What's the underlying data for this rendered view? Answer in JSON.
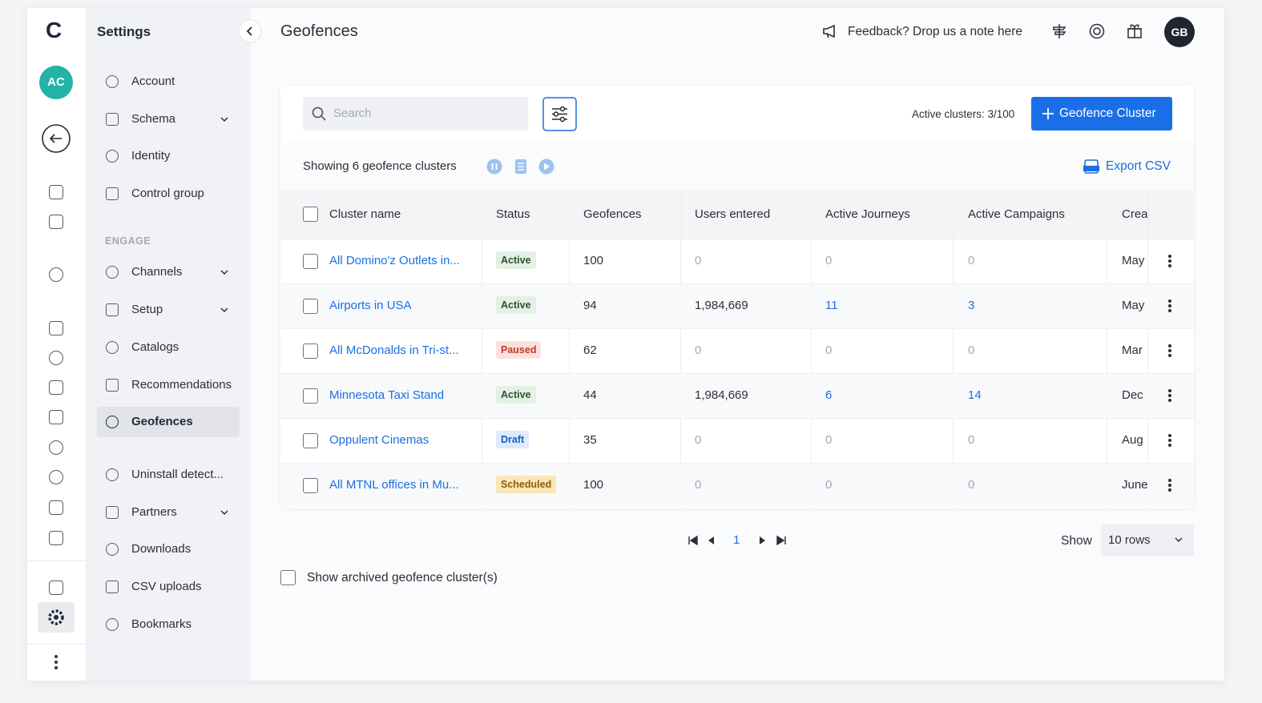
{
  "rail": {
    "logo": "C",
    "avatar": "AC"
  },
  "sidebar": {
    "title": "Settings",
    "items": [
      "Account",
      "Schema",
      "Identity",
      "Control group"
    ],
    "section": "ENGAGE",
    "engage_items": [
      "Channels",
      "Setup",
      "Catalogs",
      "Recommendations",
      "Geofences"
    ],
    "more_items": [
      "Uninstall detect...",
      "Partners",
      "Downloads",
      "CSV uploads",
      "Bookmarks"
    ]
  },
  "header": {
    "title": "Geofences",
    "feedback": "Feedback? Drop us a note here",
    "avatar": "GB"
  },
  "toolbar": {
    "search_placeholder": "Search",
    "active_clusters": "Active clusters: 3/100",
    "add_button": "Geofence Cluster"
  },
  "summary": {
    "showing": "Showing 6 geofence clusters",
    "export": "Export CSV"
  },
  "table": {
    "columns": [
      "Cluster name",
      "Status",
      "Geofences",
      "Users entered",
      "Active Journeys",
      "Active Campaigns",
      "Crea"
    ],
    "rows": [
      [
        "All Domino'z Outlets in...",
        "Active",
        "100",
        "0",
        "0",
        "0",
        "May"
      ],
      [
        "Airports in USA",
        "Active",
        "94",
        "1,984,669",
        "11",
        "3",
        "May"
      ],
      [
        "All McDonalds in Tri-st...",
        "Paused",
        "62",
        "0",
        "0",
        "0",
        "Mar"
      ],
      [
        "Minnesota Taxi Stand",
        "Active",
        "44",
        "1,984,669",
        "6",
        "14",
        "Dec"
      ],
      [
        "Oppulent Cinemas",
        "Draft",
        "35",
        "0",
        "0",
        "0",
        "Aug"
      ],
      [
        "All MTNL offices in Mu...",
        "Scheduled",
        "100",
        "0",
        "0",
        "0",
        "June"
      ]
    ]
  },
  "pagination": {
    "page": "1",
    "show": "Show",
    "rows_option": "10 rows"
  },
  "archived": "Show archived geofence cluster(s)"
}
